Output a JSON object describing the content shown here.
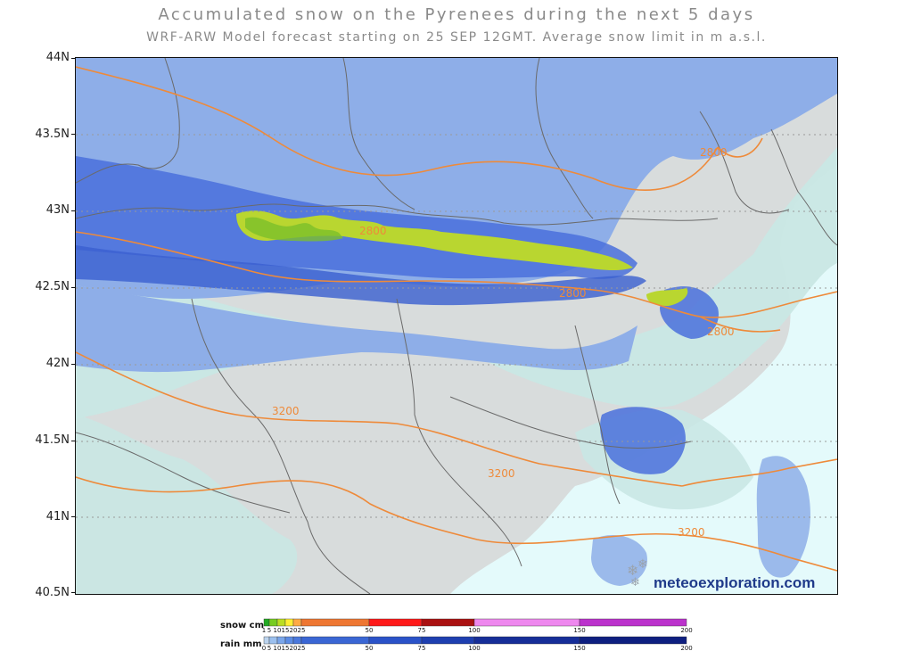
{
  "title": "Accumulated snow on the Pyrenees during the next 5 days",
  "subtitle": "WRF-ARW Model forecast starting on 25 SEP 12GMT.  Average snow limit in m a.s.l.",
  "lat_labels": [
    "44N",
    "43.5N",
    "43N",
    "42.5N",
    "42N",
    "41.5N",
    "41N",
    "40.5N"
  ],
  "contour_labels": [
    "3200",
    "3200",
    "3200",
    "2800",
    "2800",
    "2800",
    "2800"
  ],
  "logo": "meteoexploration.com",
  "legend": {
    "snow_label": "snow cm",
    "rain_label": "rain mm",
    "snow_ticks": [
      "1",
      "5",
      "10",
      "15",
      "20",
      "25",
      "50",
      "75",
      "100",
      "150",
      "200"
    ],
    "rain_ticks": [
      "0",
      "5",
      "10",
      "15",
      "20",
      "25",
      "50",
      "75",
      "100",
      "150",
      "200"
    ],
    "snow_colors": [
      "#22aa22",
      "#77cc22",
      "#bbdd22",
      "#ffee33",
      "#ffaa44",
      "#ee7733",
      "#ff1a1a",
      "#aa1111",
      "#ee88ee",
      "#bb33cc",
      "#773399"
    ],
    "rain_colors": [
      "#bcd4ee",
      "#9cc0ee",
      "#7aa6ea",
      "#5c8ce4",
      "#4a78dc",
      "#3a66d4",
      "#2a52c8",
      "#1e3fb0",
      "#162e98",
      "#0e1f80"
    ]
  },
  "colors": {
    "background_land": "#d8dcdc",
    "light_precip": "#c9e7e4",
    "medium_precip": "#8eaee8",
    "heavy_precip": "#4a70dc",
    "snow": "#b9d630",
    "contour": "#ee8a3a",
    "borders": "#6a6a6a",
    "sea": "#e4fafb"
  },
  "map": {
    "lat_range": [
      "40.5N",
      "44N"
    ],
    "lat_gridlines": [
      "43.5N",
      "43N",
      "42.5N",
      "42N",
      "41.5N",
      "41N"
    ],
    "gridlines": "dotted"
  }
}
